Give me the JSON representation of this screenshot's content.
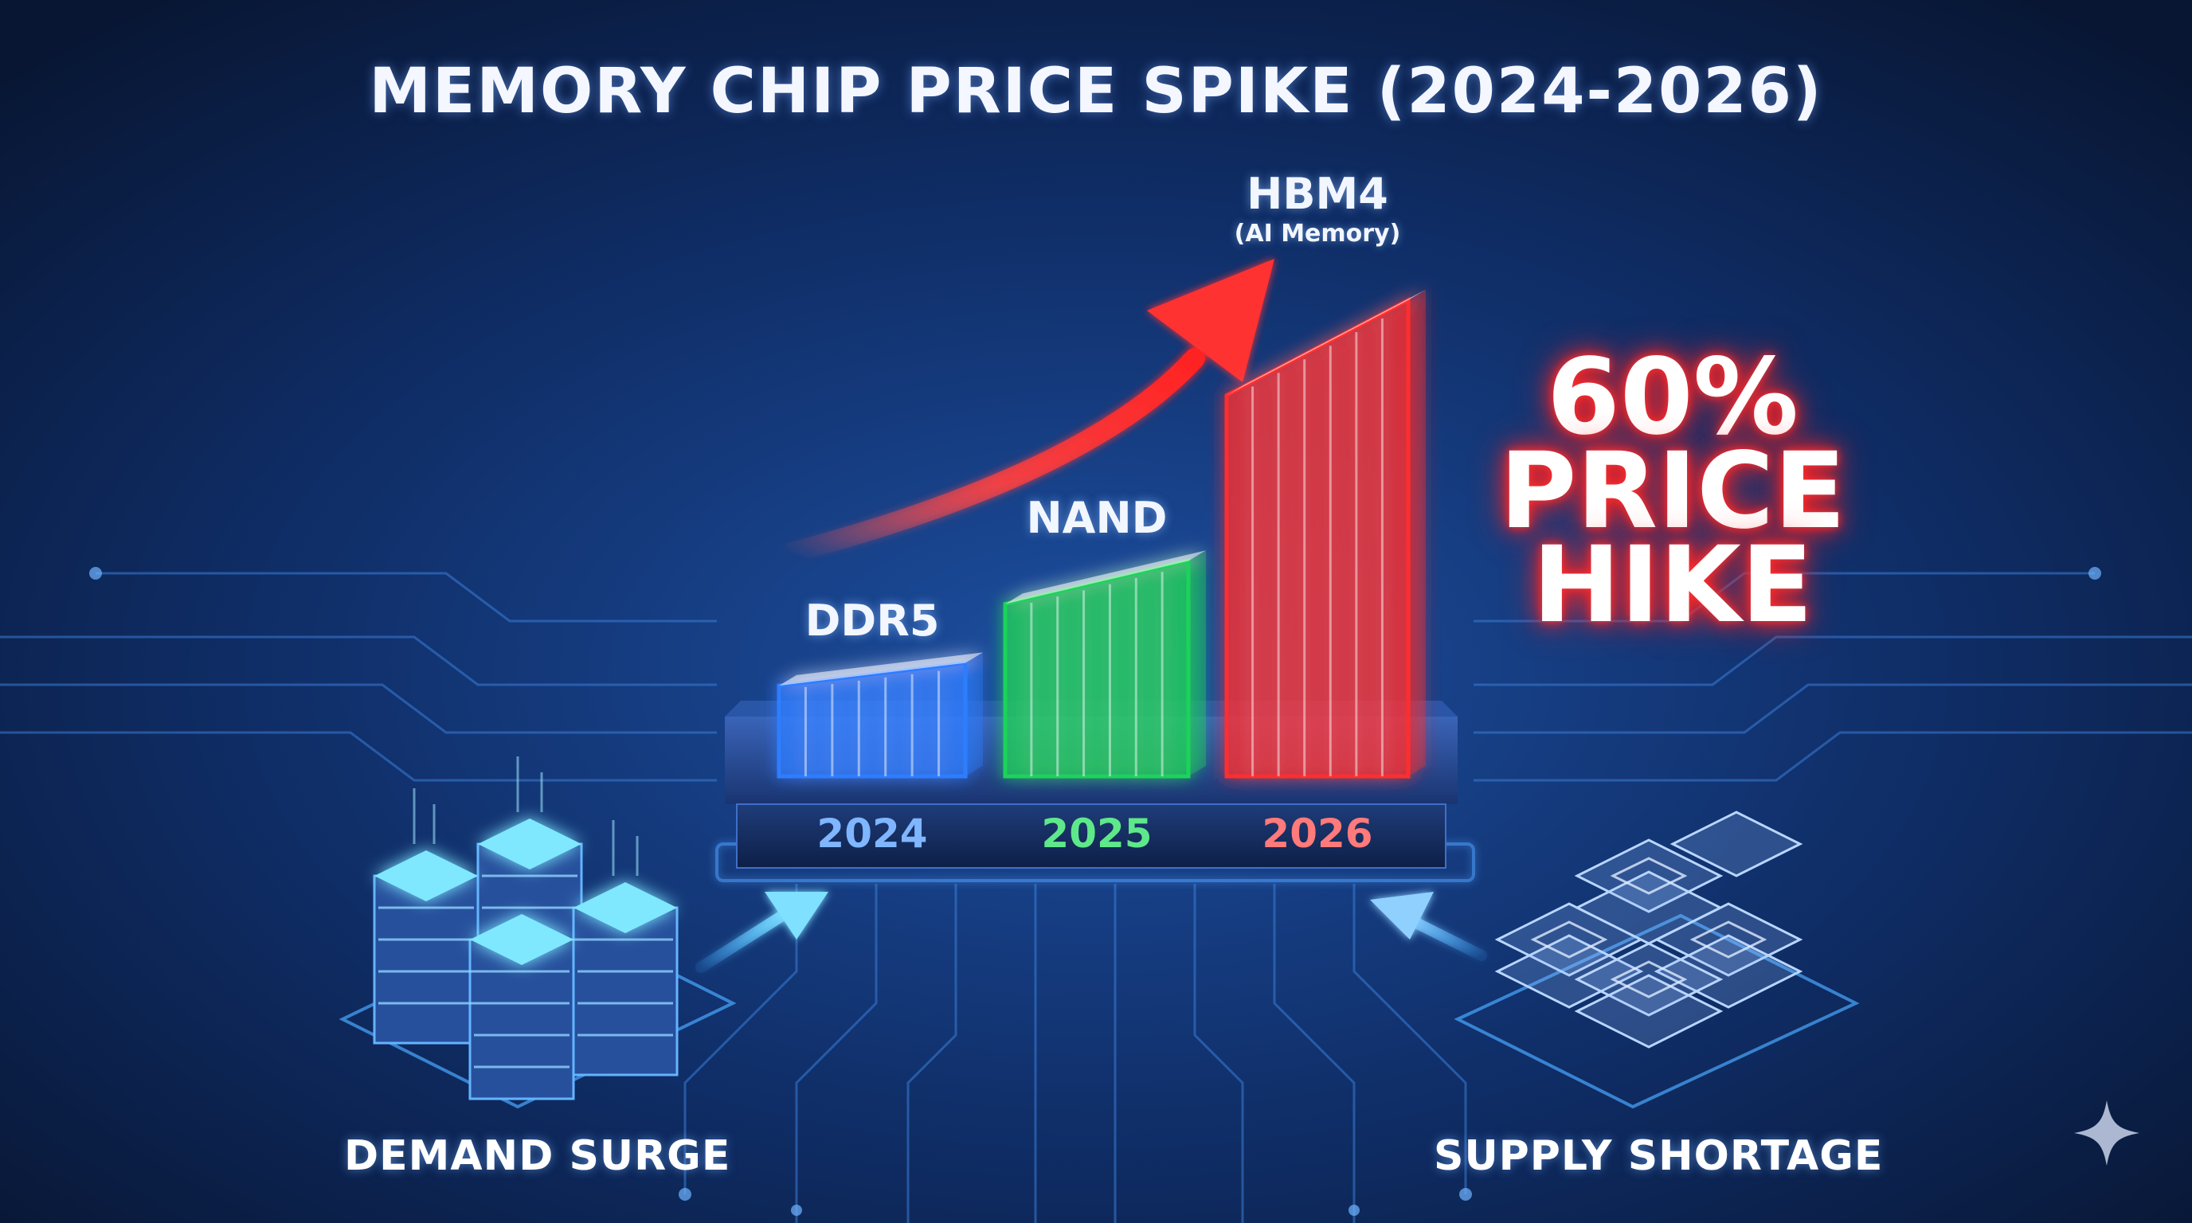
{
  "title": "MEMORY CHIP PRICE SPIKE (2024-2026)",
  "callout": {
    "line1": "60%",
    "line2": "PRICE",
    "line3": "HIKE"
  },
  "chart_data": {
    "type": "bar",
    "title": "MEMORY CHIP PRICE SPIKE (2024-2026)",
    "categories": [
      "2024",
      "2025",
      "2026"
    ],
    "bar_labels": [
      "DDR5",
      "NAND",
      "HBM4"
    ],
    "bar_sublabels": [
      "",
      "",
      "(AI Memory)"
    ],
    "values": [
      1.0,
      1.9,
      4.2
    ],
    "ylim": [
      0,
      4.6
    ],
    "colors": [
      "#2f7dff",
      "#1fd35a",
      "#ff2d2d"
    ],
    "grid": false,
    "legend": "none",
    "annotation": "60% PRICE HIKE"
  },
  "footer": {
    "left": "DEMAND SURGE",
    "right": "SUPPLY SHORTAGE"
  },
  "icons": {
    "left": "server-stack-icon",
    "right": "memory-chip-stack-icon",
    "trend": "trend-arrow-icon",
    "corner": "sparkle-icon"
  }
}
